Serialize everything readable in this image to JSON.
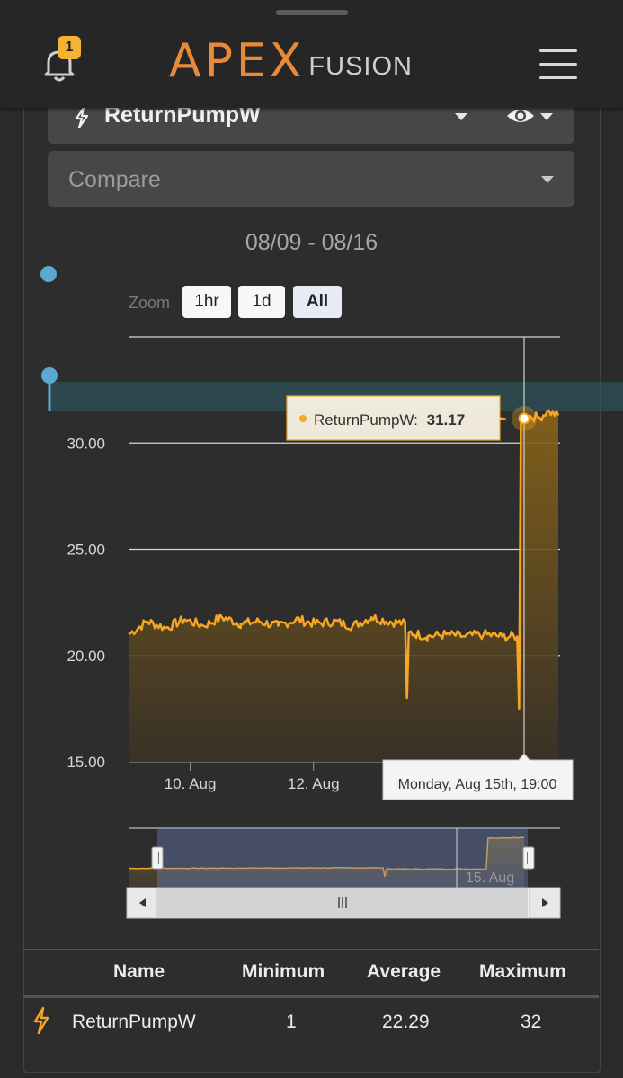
{
  "header": {
    "notification_count": "1",
    "logo_apex": "APEX",
    "logo_fusion": "FUSION"
  },
  "selector": {
    "output_name": "ReturnPumpW",
    "compare_placeholder": "Compare"
  },
  "date_range": "08/09 - 08/16",
  "zoom": {
    "label": "Zoom",
    "buttons": [
      "1hr",
      "1d",
      "All"
    ],
    "active": "All"
  },
  "chart_data": {
    "type": "area",
    "series": [
      {
        "name": "ReturnPumpW",
        "color": "#f5a623"
      }
    ],
    "y_ticks": [
      "30.00",
      "25.00",
      "20.00",
      "15.00"
    ],
    "ylim": [
      15,
      35
    ],
    "x_ticks": [
      "10. Aug",
      "12. Aug"
    ],
    "x_range": [
      "2022-08-09",
      "2022-08-16"
    ],
    "tooltip": {
      "series_label": "ReturnPumpW:",
      "value": "31.17",
      "time_label": "Monday, Aug 15th, 19:00"
    },
    "navigator_label": "15. Aug",
    "points": [
      [
        0,
        21.0
      ],
      [
        0.5,
        21.6
      ],
      [
        1.0,
        21.3
      ],
      [
        1.5,
        21.7
      ],
      [
        2.0,
        21.4
      ],
      [
        2.5,
        21.8
      ],
      [
        3.0,
        21.5
      ],
      [
        3.5,
        21.6
      ],
      [
        4.0,
        21.4
      ],
      [
        4.5,
        21.7
      ],
      [
        5.0,
        21.5
      ],
      [
        5.5,
        21.6
      ],
      [
        6.0,
        21.4
      ],
      [
        6.5,
        21.8
      ],
      [
        7.0,
        21.6
      ],
      [
        7.4,
        21.5
      ],
      [
        7.45,
        18.0
      ],
      [
        7.5,
        21.1
      ],
      [
        8.0,
        20.9
      ],
      [
        8.5,
        21.0
      ],
      [
        9.0,
        20.9
      ],
      [
        9.5,
        21.0
      ],
      [
        10.0,
        20.9
      ],
      [
        10.4,
        20.9
      ],
      [
        10.45,
        17.5
      ],
      [
        10.5,
        31.0
      ],
      [
        10.6,
        31.3
      ],
      [
        11.0,
        31.2
      ],
      [
        11.2,
        31.5
      ],
      [
        11.5,
        31.3
      ]
    ],
    "navigator_points": [
      [
        0,
        21.2
      ],
      [
        7.4,
        21.4
      ],
      [
        7.45,
        18.5
      ],
      [
        7.5,
        21.0
      ],
      [
        10.4,
        21.0
      ],
      [
        10.45,
        31.0
      ],
      [
        11.5,
        31.2
      ]
    ]
  },
  "table": {
    "headers": [
      "Name",
      "Minimum",
      "Average",
      "Maximum"
    ],
    "rows": [
      {
        "name": "ReturnPumpW",
        "min": "1",
        "avg": "22.29",
        "max": "32"
      }
    ]
  },
  "colors": {
    "accent": "#f5a623",
    "logo_orange": "#e98a3a",
    "badge": "#f5b331",
    "marker_blue": "#5aaad0"
  }
}
